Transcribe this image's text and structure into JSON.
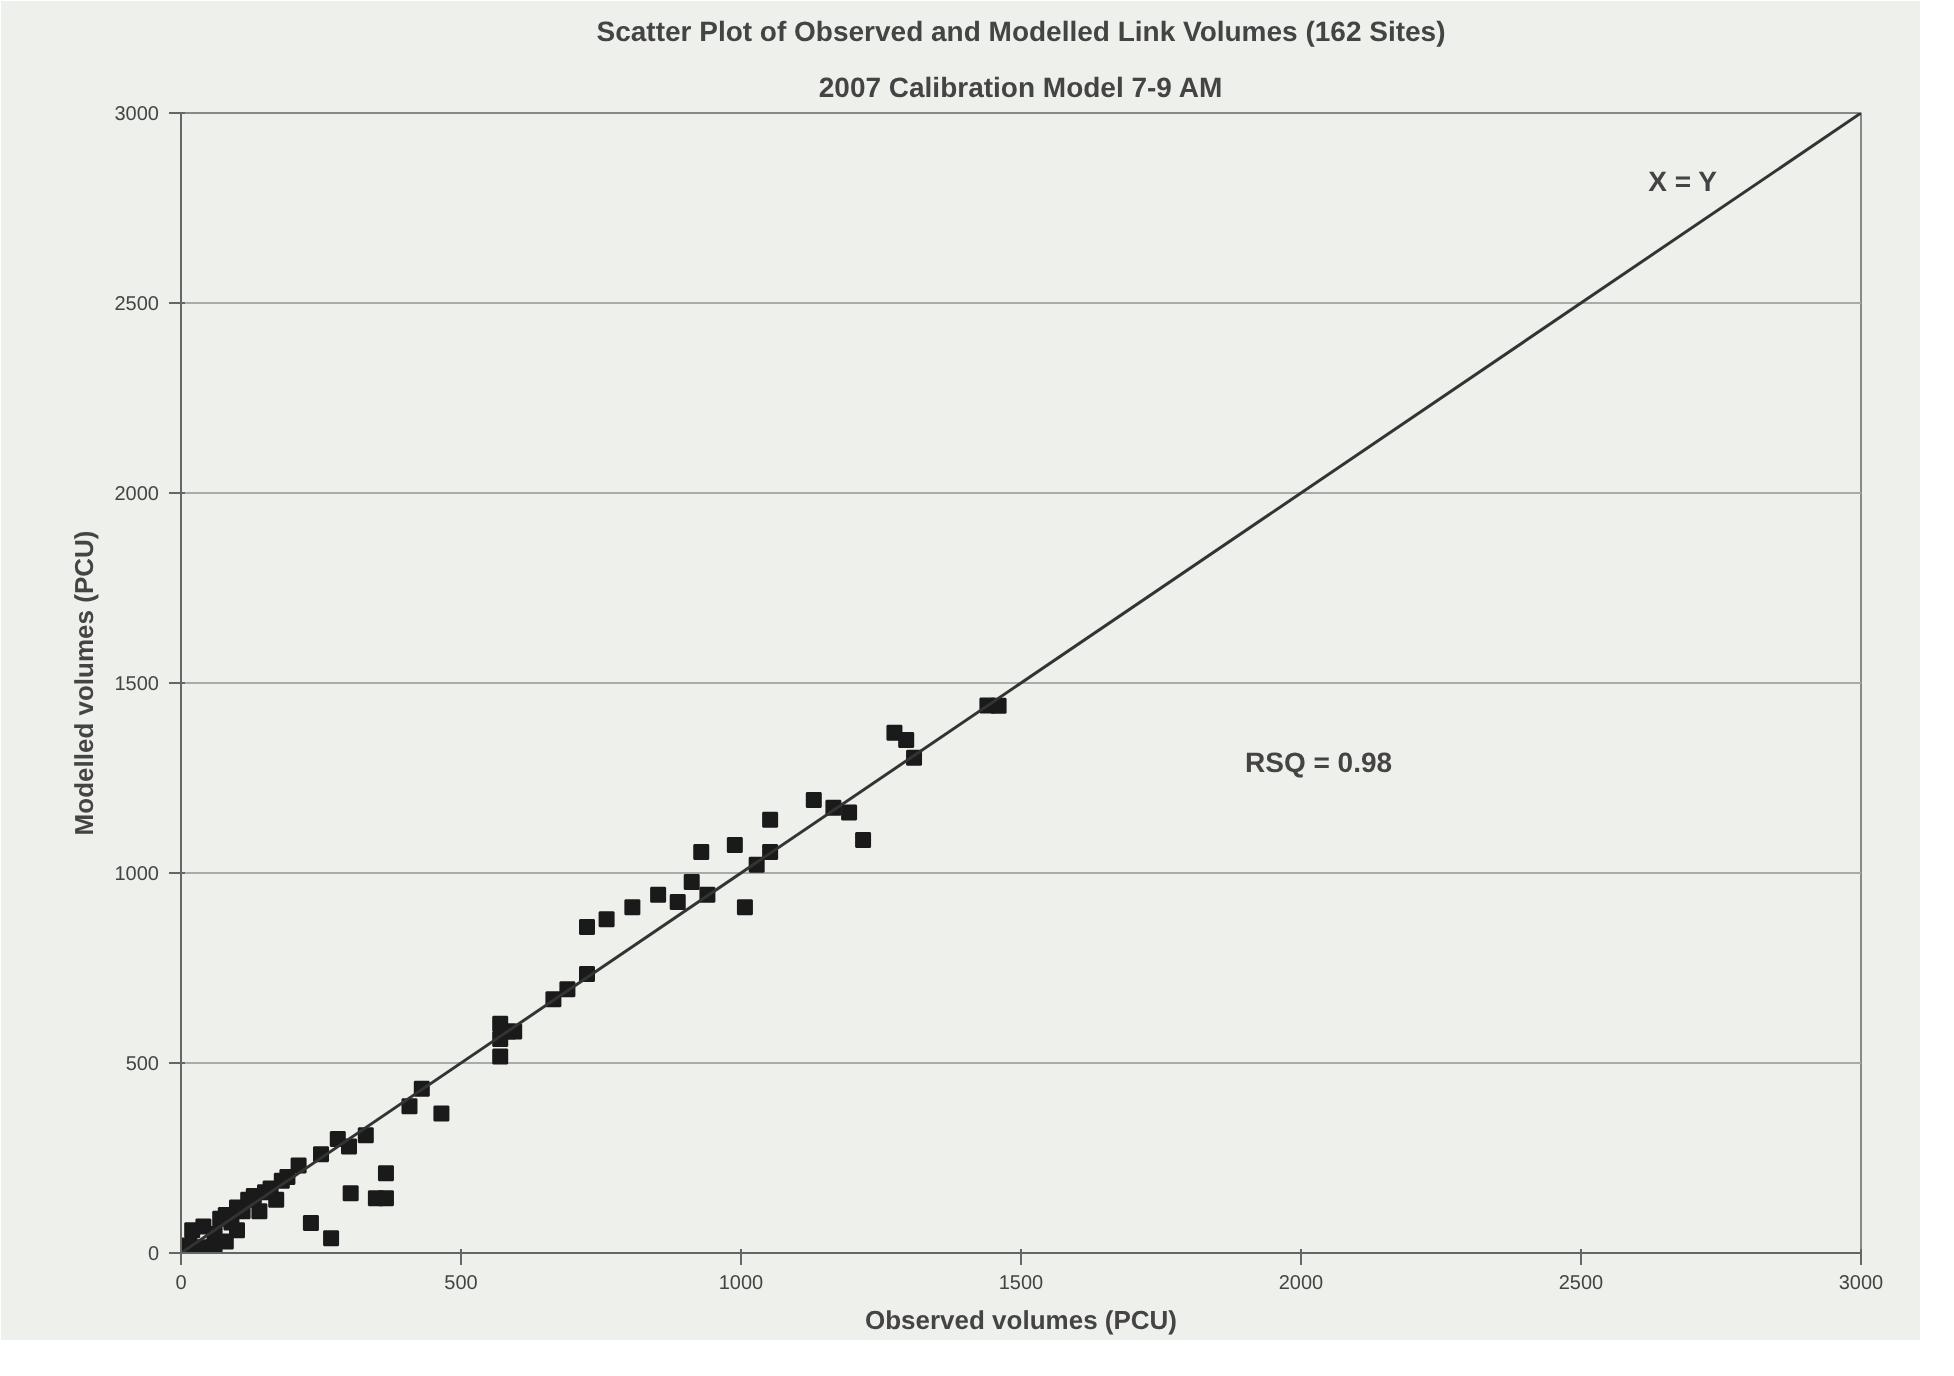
{
  "chart_data": {
    "type": "scatter",
    "title": "Scatter Plot of Observed and Modelled Link Volumes (162 Sites)",
    "subtitle": "2007 Calibration Model 7-9 AM",
    "xlabel": "Observed volumes (PCU)",
    "ylabel": "Modelled volumes (PCU)",
    "xlim": [
      0,
      3000
    ],
    "ylim": [
      0,
      3000
    ],
    "xticks": [
      0,
      500,
      1000,
      1500,
      2000,
      2500,
      3000
    ],
    "yticks": [
      0,
      500,
      1000,
      1500,
      2000,
      2500,
      3000
    ],
    "grid": "y",
    "series": [
      {
        "marker": "square",
        "color": "#1a1a1a",
        "x": [
          15,
          35,
          20,
          40,
          60,
          70,
          80,
          90,
          100,
          110,
          120,
          60,
          80,
          100,
          130,
          150,
          170,
          190,
          210,
          140,
          160,
          180,
          232,
          268,
          303,
          348,
          366,
          366,
          250,
          280,
          300,
          330,
          408,
          430,
          465,
          570,
          570,
          595,
          570,
          584,
          665,
          690,
          725,
          725,
          760,
          806,
          852,
          887,
          912,
          929,
          940,
          989,
          1007,
          1028,
          1052,
          1052,
          1130,
          1165,
          1193,
          1218,
          1274,
          1295,
          1309,
          1440,
          1460
        ],
        "values": [
          20,
          15,
          60,
          70,
          50,
          90,
          100,
          80,
          120,
          110,
          140,
          20,
          30,
          60,
          150,
          160,
          140,
          200,
          230,
          110,
          170,
          190,
          79,
          39,
          157,
          144,
          144,
          210,
          260,
          300,
          280,
          310,
          386,
          432,
          367,
          517,
          603,
          583,
          563,
          583,
          668,
          694,
          734,
          858,
          878,
          910,
          943,
          924,
          976,
          1055,
          943,
          1074,
          910,
          1022,
          1055,
          1140,
          1192,
          1172,
          1159,
          1087,
          1369,
          1350,
          1303,
          1441,
          1440
        ]
      },
      {
        "type": "line",
        "color": "#333333",
        "x": [
          0,
          3000
        ],
        "values": [
          0,
          3000
        ]
      }
    ],
    "annotations": [
      "X = Y",
      "RSQ = 0.98"
    ]
  }
}
